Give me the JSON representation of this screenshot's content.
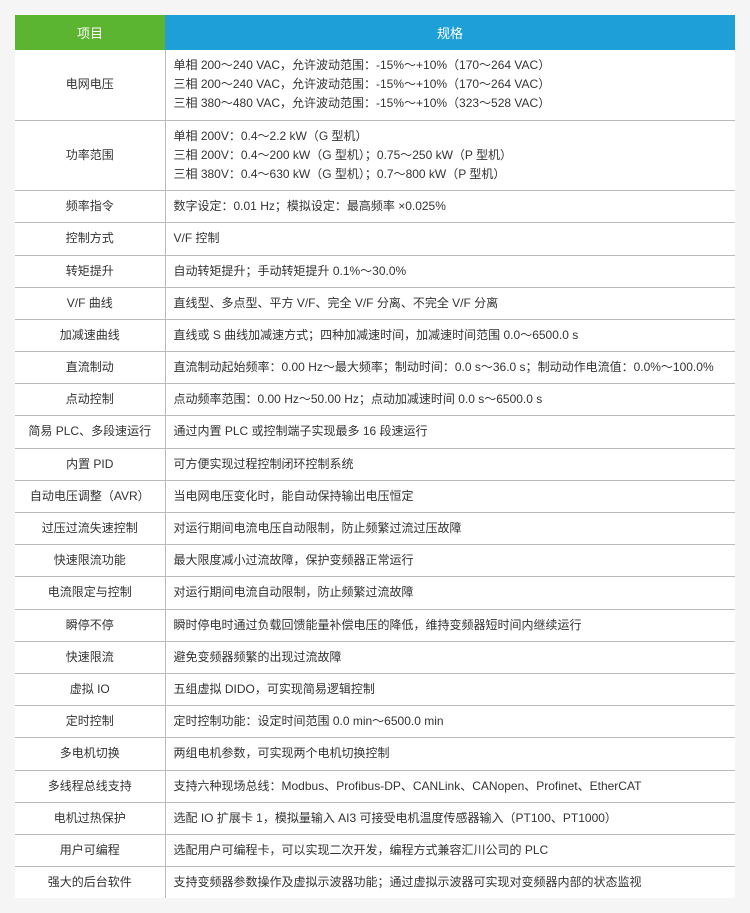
{
  "header": {
    "col1": "项目",
    "col2": "规格",
    "col1_bg": "#5cb531",
    "col2_bg": "#1e9fd8"
  },
  "rows": [
    {
      "label": "电网电压",
      "value": "单相 200～240 VAC，允许波动范围：-15%～+10%（170～264 VAC）\n三相 200～240 VAC，允许波动范围：-15%～+10%（170～264 VAC）\n三相 380～480 VAC，允许波动范围：-15%～+10%（323～528 VAC）"
    },
    {
      "label": "功率范围",
      "value": "单相 200V：0.4～2.2 kW（G 型机）\n三相 200V：0.4～200 kW（G 型机）；0.75～250 kW（P 型机）\n三相 380V：0.4～630 kW（G 型机）；0.7～800 kW（P 型机）"
    },
    {
      "label": "频率指令",
      "value": "数字设定：0.01 Hz；模拟设定：最高频率 ×0.025%"
    },
    {
      "label": "控制方式",
      "value": "V/F 控制"
    },
    {
      "label": "转矩提升",
      "value": "自动转矩提升；手动转矩提升 0.1%～30.0%"
    },
    {
      "label": "V/F 曲线",
      "value": "直线型、多点型、平方 V/F、完全 V/F 分离、不完全 V/F 分离"
    },
    {
      "label": "加减速曲线",
      "value": "直线或 S 曲线加减速方式；四种加减速时间，加减速时间范围 0.0～6500.0 s"
    },
    {
      "label": "直流制动",
      "value": "直流制动起始频率：0.00 Hz～最大频率；制动时间：0.0 s～36.0 s；制动动作电流值：0.0%～100.0%"
    },
    {
      "label": "点动控制",
      "value": "点动频率范围：0.00 Hz～50.00 Hz；点动加减速时间 0.0 s～6500.0 s"
    },
    {
      "label": "简易 PLC、多段速运行",
      "value": "通过内置 PLC 或控制端子实现最多 16 段速运行"
    },
    {
      "label": "内置 PID",
      "value": "可方便实现过程控制闭环控制系统"
    },
    {
      "label": "自动电压调整（AVR）",
      "value": "当电网电压变化时，能自动保持输出电压恒定"
    },
    {
      "label": "过压过流失速控制",
      "value": "对运行期间电流电压自动限制，防止频繁过流过压故障"
    },
    {
      "label": "快速限流功能",
      "value": "最大限度减小过流故障，保护变频器正常运行"
    },
    {
      "label": "电流限定与控制",
      "value": "对运行期间电流自动限制，防止频繁过流故障"
    },
    {
      "label": "瞬停不停",
      "value": "瞬时停电时通过负载回馈能量补偿电压的降低，维持变频器短时间内继续运行"
    },
    {
      "label": "快速限流",
      "value": "避免变频器频繁的出现过流故障"
    },
    {
      "label": "虚拟 IO",
      "value": "五组虚拟 DIDO，可实现简易逻辑控制"
    },
    {
      "label": "定时控制",
      "value": "定时控制功能：设定时间范围 0.0 min～6500.0 min"
    },
    {
      "label": "多电机切换",
      "value": "两组电机参数，可实现两个电机切换控制"
    },
    {
      "label": "多线程总线支持",
      "value": "支持六种现场总线：Modbus、Profibus-DP、CANLink、CANopen、Profinet、EtherCAT"
    },
    {
      "label": "电机过热保护",
      "value": "选配 IO 扩展卡 1，模拟量输入 AI3 可接受电机温度传感器输入（PT100、PT1000）"
    },
    {
      "label": "用户可编程",
      "value": "选配用户可编程卡，可以实现二次开发，编程方式兼容汇川公司的 PLC"
    },
    {
      "label": "强大的后台软件",
      "value": "支持变频器参数操作及虚拟示波器功能；通过虚拟示波器可实现对变频器内部的状态监视"
    }
  ],
  "style": {
    "border_color": "#bbbbbb",
    "text_color": "#333333",
    "font_size": 12
  }
}
